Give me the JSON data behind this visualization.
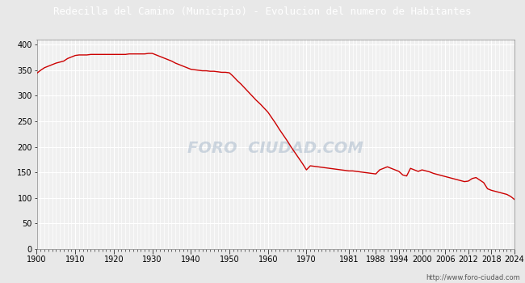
{
  "title": "Redecilla del Camino (Municipio) - Evolucion del numero de Habitantes",
  "title_color": "#ffffff",
  "title_bg": "#4a90d9",
  "line_color": "#cc0000",
  "bg_color": "#e8e8e8",
  "plot_bg": "#f0f0f0",
  "grid_color": "#ffffff",
  "watermark": "http://www.foro-ciudad.com",
  "watermark_text": "FORO  CIUDAD.COM",
  "years_xticks": [
    1900,
    1910,
    1920,
    1930,
    1940,
    1950,
    1960,
    1970,
    1981,
    1988,
    1994,
    2000,
    2006,
    2012,
    2018,
    2024
  ],
  "xtick_labels": [
    "1900",
    "1910",
    "1920",
    "1930",
    "1940",
    "1950",
    "1960",
    "1970",
    "1981",
    "1988",
    "1994",
    "2000",
    "2006",
    "2012",
    "2018",
    "2024"
  ],
  "ylim": [
    0,
    410
  ],
  "yticks": [
    0,
    50,
    100,
    150,
    200,
    250,
    300,
    350,
    400
  ],
  "data": {
    "1900": 344,
    "1901": 350,
    "1902": 355,
    "1903": 358,
    "1904": 361,
    "1905": 364,
    "1906": 366,
    "1907": 368,
    "1908": 373,
    "1909": 376,
    "1910": 379,
    "1911": 380,
    "1912": 380,
    "1913": 380,
    "1914": 381,
    "1915": 381,
    "1916": 381,
    "1917": 381,
    "1918": 381,
    "1919": 381,
    "1920": 381,
    "1921": 381,
    "1922": 381,
    "1923": 381,
    "1924": 382,
    "1925": 382,
    "1926": 382,
    "1927": 382,
    "1928": 382,
    "1929": 383,
    "1930": 383,
    "1931": 380,
    "1932": 377,
    "1933": 374,
    "1934": 371,
    "1935": 368,
    "1936": 364,
    "1937": 361,
    "1938": 358,
    "1939": 355,
    "1940": 352,
    "1941": 351,
    "1942": 350,
    "1943": 349,
    "1944": 349,
    "1945": 348,
    "1946": 348,
    "1947": 347,
    "1948": 346,
    "1949": 346,
    "1950": 345,
    "1951": 338,
    "1952": 330,
    "1953": 323,
    "1954": 315,
    "1955": 307,
    "1956": 299,
    "1957": 291,
    "1958": 284,
    "1959": 276,
    "1960": 268,
    "1961": 257,
    "1962": 246,
    "1963": 234,
    "1964": 223,
    "1965": 212,
    "1966": 200,
    "1967": 189,
    "1968": 178,
    "1969": 167,
    "1970": 155,
    "1971": 163,
    "1972": 162,
    "1973": 161,
    "1974": 160,
    "1975": 159,
    "1976": 158,
    "1977": 157,
    "1978": 156,
    "1979": 155,
    "1980": 154,
    "1981": 153,
    "1982": 153,
    "1983": 152,
    "1984": 151,
    "1985": 150,
    "1986": 149,
    "1987": 148,
    "1988": 147,
    "1989": 155,
    "1990": 158,
    "1991": 161,
    "1992": 158,
    "1993": 155,
    "1994": 152,
    "1995": 145,
    "1996": 143,
    "1997": 158,
    "1998": 155,
    "1999": 152,
    "2000": 155,
    "2001": 153,
    "2002": 151,
    "2003": 148,
    "2004": 146,
    "2005": 144,
    "2006": 142,
    "2007": 140,
    "2008": 138,
    "2009": 136,
    "2010": 134,
    "2011": 132,
    "2012": 133,
    "2013": 138,
    "2014": 140,
    "2015": 135,
    "2016": 130,
    "2017": 118,
    "2018": 115,
    "2019": 113,
    "2020": 111,
    "2021": 109,
    "2022": 107,
    "2023": 103,
    "2024": 97
  }
}
